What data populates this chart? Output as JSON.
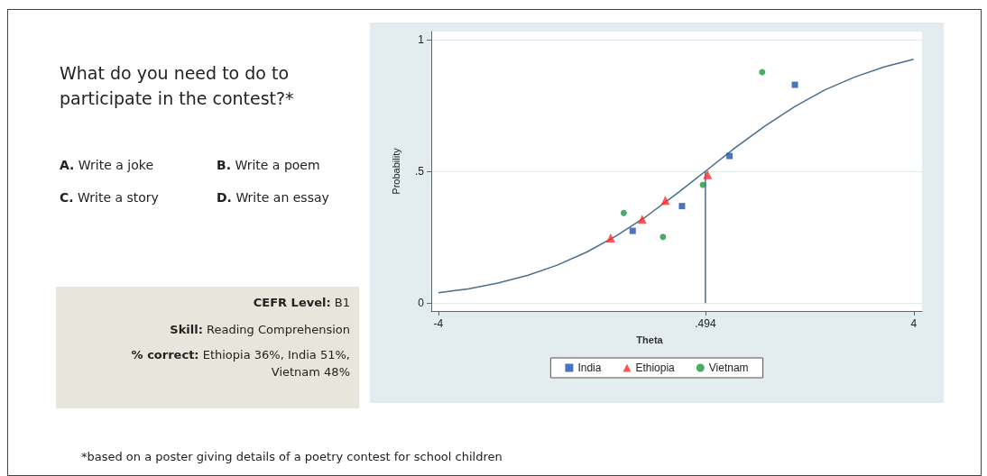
{
  "chart_data": {
    "type": "scatter",
    "xlabel": "Theta",
    "ylabel": "Probability",
    "xlim": [
      -4.12,
      4.14
    ],
    "ylim": [
      -0.03,
      1.03
    ],
    "xticks": [
      -4,
      {
        "value": 0.494,
        "label": ".494"
      },
      4
    ],
    "yticks": [
      0,
      {
        "value": 0.5,
        "label": ".5"
      },
      1
    ],
    "grid": "y",
    "legend": "bottom",
    "series": [
      {
        "name": "India",
        "marker": "square",
        "color": "#1f4fb4",
        "x": [
          -0.73,
          0.1,
          0.9,
          2.0
        ],
        "values": [
          0.274,
          0.368,
          0.558,
          0.828
        ]
      },
      {
        "name": "Ethiopia",
        "marker": "triangle",
        "color": "#ff2a2a",
        "x": [
          -1.1,
          -0.57,
          -0.18,
          0.53
        ],
        "values": [
          0.247,
          0.318,
          0.39,
          0.487
        ]
      },
      {
        "name": "Vietnam",
        "marker": "circle",
        "color": "#1a9641",
        "x": [
          -0.88,
          -0.22,
          0.45,
          1.45
        ],
        "values": [
          0.342,
          0.251,
          0.449,
          0.876
        ]
      },
      {
        "type": "line",
        "marker": "none",
        "color": "#4a6e8e",
        "x": [
          -4,
          -3.5,
          -3,
          -2.5,
          -2,
          -1.5,
          -1,
          -0.5,
          0,
          0.494,
          1,
          1.5,
          2,
          2.5,
          3,
          3.5,
          4
        ],
        "values": [
          0.039,
          0.054,
          0.076,
          0.105,
          0.144,
          0.194,
          0.256,
          0.329,
          0.413,
          0.5,
          0.59,
          0.672,
          0.746,
          0.808,
          0.857,
          0.896,
          0.925
        ]
      },
      {
        "type": "line",
        "marker": "none",
        "color": "#4a6e8e",
        "x": [
          0.494,
          0.494
        ],
        "values": [
          0,
          0.5
        ]
      }
    ],
    "annotations": [
      "What do you need to do to participate in the contest?*",
      "A. Write a joke",
      "B. Write a poem",
      "C. Write a story",
      "D. Write an essay",
      "CEFR Level: B1",
      "Skill: Reading Comprehension",
      "% correct: Ethiopia  36%, India 51%, Vietnam 48%",
      "*based on a poster giving details of a poetry contest for school children"
    ]
  }
}
